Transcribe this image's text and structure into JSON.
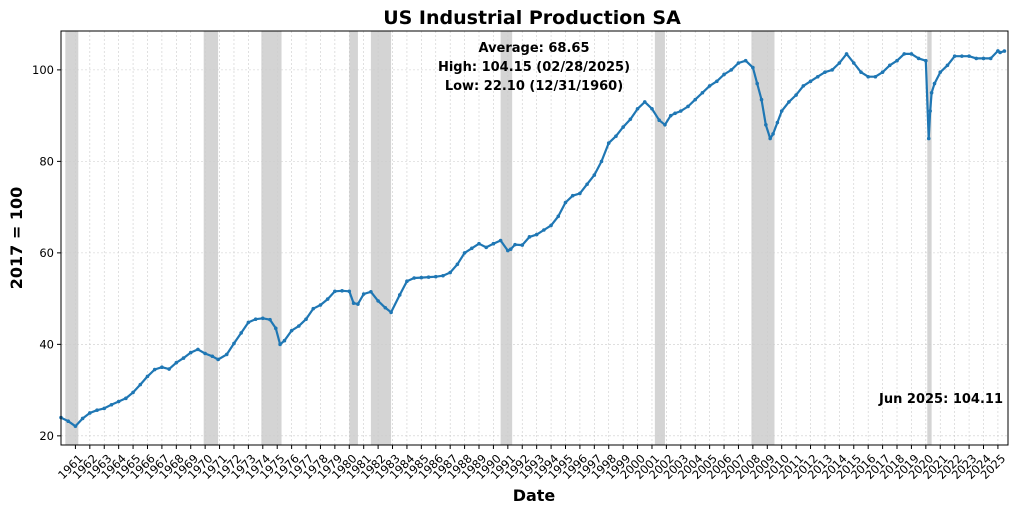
{
  "chart_data": {
    "type": "line",
    "title": "US Industrial Production SA",
    "xlabel": "Date",
    "ylabel": "2017 = 100",
    "xlim": [
      1960.0,
      2025.7
    ],
    "ylim": [
      18.0,
      108.5
    ],
    "yticks": [
      20,
      40,
      60,
      80,
      100
    ],
    "xticks": [
      "1961",
      "1962",
      "1963",
      "1964",
      "1965",
      "1966",
      "1967",
      "1968",
      "1969",
      "1970",
      "1971",
      "1972",
      "1973",
      "1974",
      "1975",
      "1976",
      "1977",
      "1978",
      "1979",
      "1980",
      "1981",
      "1982",
      "1983",
      "1984",
      "1985",
      "1986",
      "1987",
      "1988",
      "1989",
      "1990",
      "1991",
      "1992",
      "1993",
      "1994",
      "1995",
      "1996",
      "1997",
      "1998",
      "1999",
      "2000",
      "2001",
      "2002",
      "2003",
      "2004",
      "2005",
      "2006",
      "2007",
      "2008",
      "2009",
      "2010",
      "2011",
      "2012",
      "2013",
      "2014",
      "2015",
      "2016",
      "2017",
      "2018",
      "2019",
      "2020",
      "2021",
      "2022",
      "2023",
      "2024",
      "2025"
    ],
    "grid": true,
    "line_color": "#1f77b4",
    "recession_color": "#b0b0b0",
    "recessions": [
      [
        1960.3,
        1961.2
      ],
      [
        1969.9,
        1970.9
      ],
      [
        1973.9,
        1975.3
      ],
      [
        1980.0,
        1980.6
      ],
      [
        1981.5,
        1982.9
      ],
      [
        1990.5,
        1991.3
      ],
      [
        2001.2,
        2001.9
      ],
      [
        2007.9,
        2009.5
      ],
      [
        2020.1,
        2020.4
      ]
    ],
    "series": [
      {
        "x": [
          1960.0,
          1960.5,
          1961.0,
          1961.5,
          1962.0,
          1962.5,
          1963.0,
          1963.5,
          1964.0,
          1964.5,
          1965.0,
          1965.5,
          1966.0,
          1966.5,
          1967.0,
          1967.5,
          1968.0,
          1968.5,
          1969.0,
          1969.5,
          1970.0,
          1970.5,
          1970.9,
          1971.5,
          1972.0,
          1972.5,
          1973.0,
          1973.5,
          1974.0,
          1974.5,
          1974.9,
          1975.2,
          1975.5,
          1976.0,
          1976.5,
          1977.0,
          1977.5,
          1978.0,
          1978.5,
          1979.0,
          1979.5,
          1980.0,
          1980.3,
          1980.6,
          1981.0,
          1981.5,
          1982.0,
          1982.5,
          1982.9,
          1983.5,
          1984.0,
          1984.5,
          1985.0,
          1985.5,
          1986.0,
          1986.5,
          1987.0,
          1987.5,
          1988.0,
          1988.5,
          1989.0,
          1989.5,
          1990.0,
          1990.5,
          1991.0,
          1991.2,
          1991.5,
          1992.0,
          1992.5,
          1993.0,
          1993.5,
          1994.0,
          1994.5,
          1995.0,
          1995.5,
          1996.0,
          1996.5,
          1997.0,
          1997.5,
          1998.0,
          1998.5,
          1999.0,
          1999.5,
          2000.0,
          2000.5,
          2001.0,
          2001.5,
          2001.9,
          2002.3,
          2002.6,
          2003.0,
          2003.5,
          2004.0,
          2004.5,
          2005.0,
          2005.5,
          2006.0,
          2006.5,
          2007.0,
          2007.5,
          2008.0,
          2008.3,
          2008.6,
          2008.9,
          2009.2,
          2009.4,
          2009.7,
          2010.0,
          2010.5,
          2011.0,
          2011.5,
          2012.0,
          2012.5,
          2013.0,
          2013.5,
          2014.0,
          2014.5,
          2015.0,
          2015.5,
          2016.0,
          2016.5,
          2017.0,
          2017.5,
          2018.0,
          2018.5,
          2019.0,
          2019.5,
          2020.0,
          2020.2,
          2020.3,
          2020.4,
          2020.6,
          2021.0,
          2021.5,
          2022.0,
          2022.5,
          2023.0,
          2023.5,
          2024.0,
          2024.5,
          2025.0,
          2025.15,
          2025.45
        ],
        "y": [
          24.0,
          23.2,
          22.1,
          23.8,
          25.0,
          25.6,
          26.0,
          26.8,
          27.5,
          28.2,
          29.5,
          31.2,
          33.0,
          34.5,
          35.0,
          34.6,
          36.0,
          37.0,
          38.2,
          38.9,
          38.0,
          37.4,
          36.7,
          37.8,
          40.2,
          42.5,
          44.8,
          45.5,
          45.7,
          45.4,
          43.5,
          40.0,
          40.8,
          43.0,
          44.0,
          45.5,
          47.8,
          48.6,
          49.9,
          51.6,
          51.7,
          51.6,
          49.0,
          48.8,
          51.0,
          51.5,
          49.5,
          48.0,
          47.0,
          50.8,
          53.8,
          54.5,
          54.6,
          54.7,
          54.8,
          55.0,
          55.7,
          57.5,
          60.0,
          61.0,
          62.0,
          61.2,
          62.0,
          62.7,
          60.5,
          60.8,
          61.8,
          61.7,
          63.5,
          64.0,
          65.0,
          66.0,
          68.0,
          71.0,
          72.5,
          73.0,
          75.0,
          77.0,
          80.0,
          84.0,
          85.5,
          87.5,
          89.2,
          91.5,
          93.0,
          91.5,
          89.0,
          88.0,
          90.0,
          90.5,
          91.0,
          92.0,
          93.5,
          95.0,
          96.5,
          97.5,
          99.0,
          100.0,
          101.5,
          102.0,
          100.5,
          97.0,
          93.5,
          88.0,
          85.0,
          86.0,
          88.5,
          91.0,
          93.0,
          94.5,
          96.5,
          97.5,
          98.5,
          99.5,
          100.0,
          101.5,
          103.5,
          101.5,
          99.5,
          98.5,
          98.5,
          99.5,
          101.0,
          102.0,
          103.5,
          103.5,
          102.5,
          102.0,
          85.0,
          91.0,
          95.0,
          97.0,
          99.5,
          101.0,
          103.0,
          103.0,
          103.0,
          102.5,
          102.5,
          102.5,
          104.15,
          103.8,
          104.11
        ]
      }
    ],
    "annotations": {
      "average": "Average: 68.65",
      "high": "High: 104.15 (02/28/2025)",
      "low": "Low: 22.10 (12/31/1960)",
      "last": "Jun 2025: 104.11"
    }
  }
}
